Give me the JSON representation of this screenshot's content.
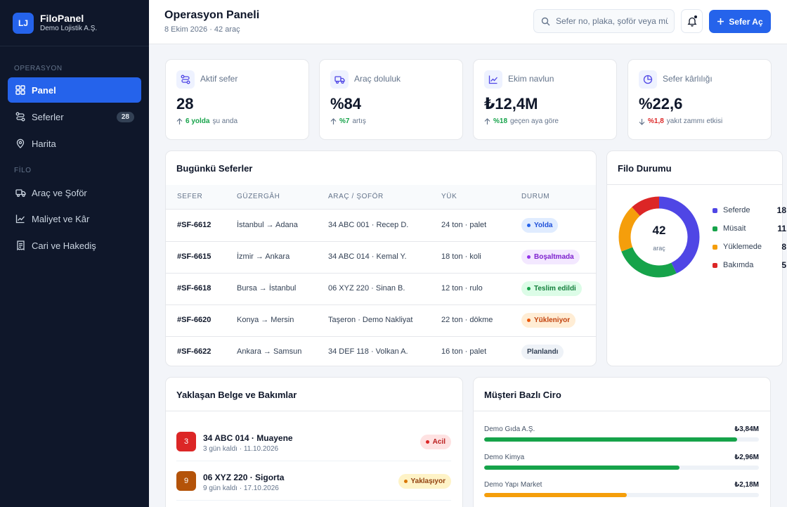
{
  "brand": {
    "logo": "LJ",
    "name": "FiloPanel",
    "company": "Demo Lojistik A.Ş."
  },
  "sidebar": {
    "sections": [
      {
        "title": "OPERASYON"
      },
      {
        "title": "FİLO"
      }
    ],
    "items": [
      {
        "label": "Panel",
        "icon": "grid-icon",
        "active": true
      },
      {
        "label": "Seferler",
        "icon": "route-icon",
        "badge": "28"
      },
      {
        "label": "Harita",
        "icon": "map-pin-icon"
      },
      {
        "label": "Araç ve Şoför",
        "icon": "truck-icon"
      },
      {
        "label": "Maliyet ve Kâr",
        "icon": "chart-line-icon"
      },
      {
        "label": "Cari ve Hakediş",
        "icon": "receipt-icon"
      }
    ]
  },
  "header": {
    "title": "Operasyon Paneli",
    "subtitle": "8 Ekim 2026 · 42 araç",
    "search_placeholder": "Sefer no, plaka, şoför veya müş",
    "primary_button": "Sefer Aç"
  },
  "stats": [
    {
      "label": "Aktif sefer",
      "value": "28",
      "trend": "up",
      "highlight": "6 yolda",
      "note": "şu anda",
      "icon": "route-icon"
    },
    {
      "label": "Araç doluluk",
      "value": "%84",
      "trend": "up",
      "highlight": "%7",
      "note": "artış",
      "icon": "truck-icon"
    },
    {
      "label": "Ekim navlun",
      "value": "₺12,4M",
      "trend": "up",
      "highlight": "%18",
      "note": "geçen aya göre",
      "icon": "chart-line-icon"
    },
    {
      "label": "Sefer kârlılığı",
      "value": "%22,6",
      "trend": "down",
      "highlight": "%1,8",
      "note": "yakıt zammı etkisi",
      "icon": "pie-icon"
    }
  ],
  "trips": {
    "title": "Bugünkü Seferler",
    "columns": [
      "SEFER",
      "GÜZERGÂH",
      "ARAÇ / ŞOFÖR",
      "YÜK",
      "DURUM"
    ],
    "rows": [
      {
        "id": "#SF-6612",
        "route": "İstanbul → Adana",
        "vehicle": "34 ABC 001 · Recep D.",
        "load": "24 ton · palet",
        "status": "Yolda",
        "status_type": "blue"
      },
      {
        "id": "#SF-6615",
        "route": "İzmir → Ankara",
        "vehicle": "34 ABC 014 · Kemal Y.",
        "load": "18 ton · koli",
        "status": "Boşaltmada",
        "status_type": "purple"
      },
      {
        "id": "#SF-6618",
        "route": "Bursa → İstanbul",
        "vehicle": "06 XYZ 220 · Sinan B.",
        "load": "12 ton · rulo",
        "status": "Teslim edildi",
        "status_type": "green"
      },
      {
        "id": "#SF-6620",
        "route": "Konya → Mersin",
        "vehicle": "Taşeron · Demo Nakliyat",
        "load": "22 ton · dökme",
        "status": "Yükleniyor",
        "status_type": "orange"
      },
      {
        "id": "#SF-6622",
        "route": "Ankara → Samsun",
        "vehicle": "34 DEF 118 · Volkan A.",
        "load": "16 ton · palet",
        "status": "Planlandı",
        "status_type": "gray"
      }
    ]
  },
  "fleet": {
    "title": "Filo Durumu",
    "total": "42",
    "total_label": "araç",
    "segments": [
      {
        "label": "Seferde",
        "value": 18,
        "color": "#4f46e5"
      },
      {
        "label": "Müsait",
        "value": 11,
        "color": "#16a34a"
      },
      {
        "label": "Yüklemede",
        "value": 8,
        "color": "#f59e0b"
      },
      {
        "label": "Bakımda",
        "value": 5,
        "color": "#dc2626"
      }
    ]
  },
  "docs": {
    "title": "Yaklaşan Belge ve Bakımlar",
    "items": [
      {
        "days": "3",
        "title": "34 ABC 014 · Muayene",
        "sub": "3 gün kaldı · 11.10.2026",
        "badge": "Acil",
        "type": "urgent",
        "color": "#dc2626"
      },
      {
        "days": "9",
        "title": "06 XYZ 220 · Sigorta",
        "sub": "9 gün kaldı · 17.10.2026",
        "badge": "Yaklaşıyor",
        "type": "soon",
        "color": "#b45309"
      }
    ]
  },
  "revenue": {
    "title": "Müşteri Bazlı Ciro",
    "items": [
      {
        "name": "Demo Gıda A.Ş.",
        "value": "₺3,84M",
        "fraction": 0.92,
        "color": "#16a34a"
      },
      {
        "name": "Demo Kimya",
        "value": "₺2,96M",
        "fraction": 0.71,
        "color": "#16a34a"
      },
      {
        "name": "Demo Yapı Market",
        "value": "₺2,18M",
        "fraction": 0.52,
        "color": "#f59e0b"
      }
    ]
  }
}
